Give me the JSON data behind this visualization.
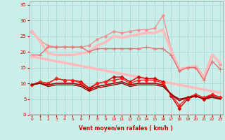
{
  "x": [
    0,
    1,
    2,
    3,
    4,
    5,
    6,
    7,
    8,
    9,
    10,
    11,
    12,
    13,
    14,
    15,
    16,
    17,
    18,
    19,
    20,
    21,
    22,
    23
  ],
  "series": [
    {
      "y": [
        26.5,
        23.5,
        null,
        null,
        null,
        null,
        null,
        null,
        null,
        null,
        null,
        null,
        null,
        null,
        null,
        null,
        null,
        null,
        null,
        null,
        null,
        null,
        null,
        null
      ],
      "color": "#f09090",
      "marker": "o",
      "lw": 1.0,
      "ms": 2.5
    },
    {
      "y": [
        26.5,
        23.5,
        22,
        21.5,
        21.5,
        21.5,
        21.5,
        22,
        24,
        25,
        26.5,
        26,
        26.5,
        27,
        27,
        27.5,
        31.5,
        21,
        14,
        15,
        15,
        11.5,
        19,
        16
      ],
      "color": "#f09090",
      "marker": "o",
      "lw": 1.0,
      "ms": 2.5
    },
    {
      "y": [
        26.5,
        23.5,
        19.5,
        19,
        19,
        19,
        19.5,
        20,
        22,
        23,
        25,
        24.5,
        25,
        25.5,
        26,
        26,
        27,
        20.5,
        14.5,
        15,
        15.5,
        12,
        19,
        16.5
      ],
      "color": "#ffbbbb",
      "marker": null,
      "lw": 2.5,
      "ms": 0
    },
    {
      "y": [
        19,
        19,
        21.5,
        21.5,
        21.5,
        21.5,
        21.5,
        20,
        21,
        21,
        21,
        21,
        21,
        21,
        21.5,
        21,
        21,
        19,
        14,
        15,
        15,
        11,
        17,
        14.5
      ],
      "color": "#e07070",
      "marker": "+",
      "lw": 1.0,
      "ms": 4
    },
    {
      "y": [
        18.5,
        18,
        17.5,
        17,
        16.5,
        16,
        15.5,
        15,
        14.5,
        14,
        13.5,
        13,
        12.5,
        12,
        11.5,
        11,
        10.5,
        10,
        9.5,
        9,
        8.5,
        8,
        7.5,
        7
      ],
      "color": "#ffbbbb",
      "marker": null,
      "lw": 2.5,
      "ms": 0
    },
    {
      "y": [
        9.5,
        10.5,
        10,
        11.5,
        11,
        11,
        10.5,
        8.5,
        10,
        10.5,
        12,
        12,
        10.5,
        12,
        11.5,
        11.5,
        10.5,
        6,
        2,
        5,
        6,
        5,
        6.5,
        5.5
      ],
      "color": "#cc0000",
      "marker": "D",
      "lw": 1.0,
      "ms": 2.5
    },
    {
      "y": [
        9.5,
        10.5,
        10,
        11.5,
        11,
        11,
        10,
        8,
        10,
        10.5,
        11,
        11.5,
        10,
        11,
        11,
        11,
        10,
        6.5,
        3,
        5.5,
        6.5,
        5.5,
        6.5,
        5.5
      ],
      "color": "#ff2222",
      "marker": "D",
      "lw": 1.0,
      "ms": 2.5
    },
    {
      "y": [
        9.5,
        10,
        9.5,
        10,
        10,
        10,
        9.5,
        8,
        9,
        9.5,
        10,
        10.5,
        9.5,
        10,
        10,
        10,
        9.5,
        6.5,
        4.5,
        5.5,
        6,
        5,
        6,
        5
      ],
      "color": "#aa0000",
      "marker": null,
      "lw": 1.2,
      "ms": 0
    },
    {
      "y": [
        9.5,
        10,
        9.0,
        9.5,
        9.5,
        9.5,
        9.0,
        7.5,
        8.5,
        9,
        9.5,
        10,
        9.0,
        9.5,
        9.5,
        9.5,
        9.0,
        6.5,
        5.0,
        5.5,
        6.0,
        5.0,
        5.5,
        5.0
      ],
      "color": "#880000",
      "marker": null,
      "lw": 1.0,
      "ms": 0
    }
  ],
  "xlim": [
    -0.3,
    23.3
  ],
  "ylim": [
    0,
    36
  ],
  "yticks": [
    0,
    5,
    10,
    15,
    20,
    25,
    30,
    35
  ],
  "xtick_labels": [
    "0",
    "1",
    "2",
    "3",
    "4",
    "5",
    "6",
    "7",
    "8",
    "9",
    "10",
    "11",
    "12",
    "13",
    "14",
    "15",
    "16",
    "17",
    "18",
    "19",
    "20",
    "21",
    "22",
    "23"
  ],
  "xlabel": "Vent moyen/en rafales ( km/h )",
  "bg_color": "#cceee8",
  "grid_color": "#aadddd",
  "tick_color": "#cc0000",
  "label_color": "#cc0000"
}
